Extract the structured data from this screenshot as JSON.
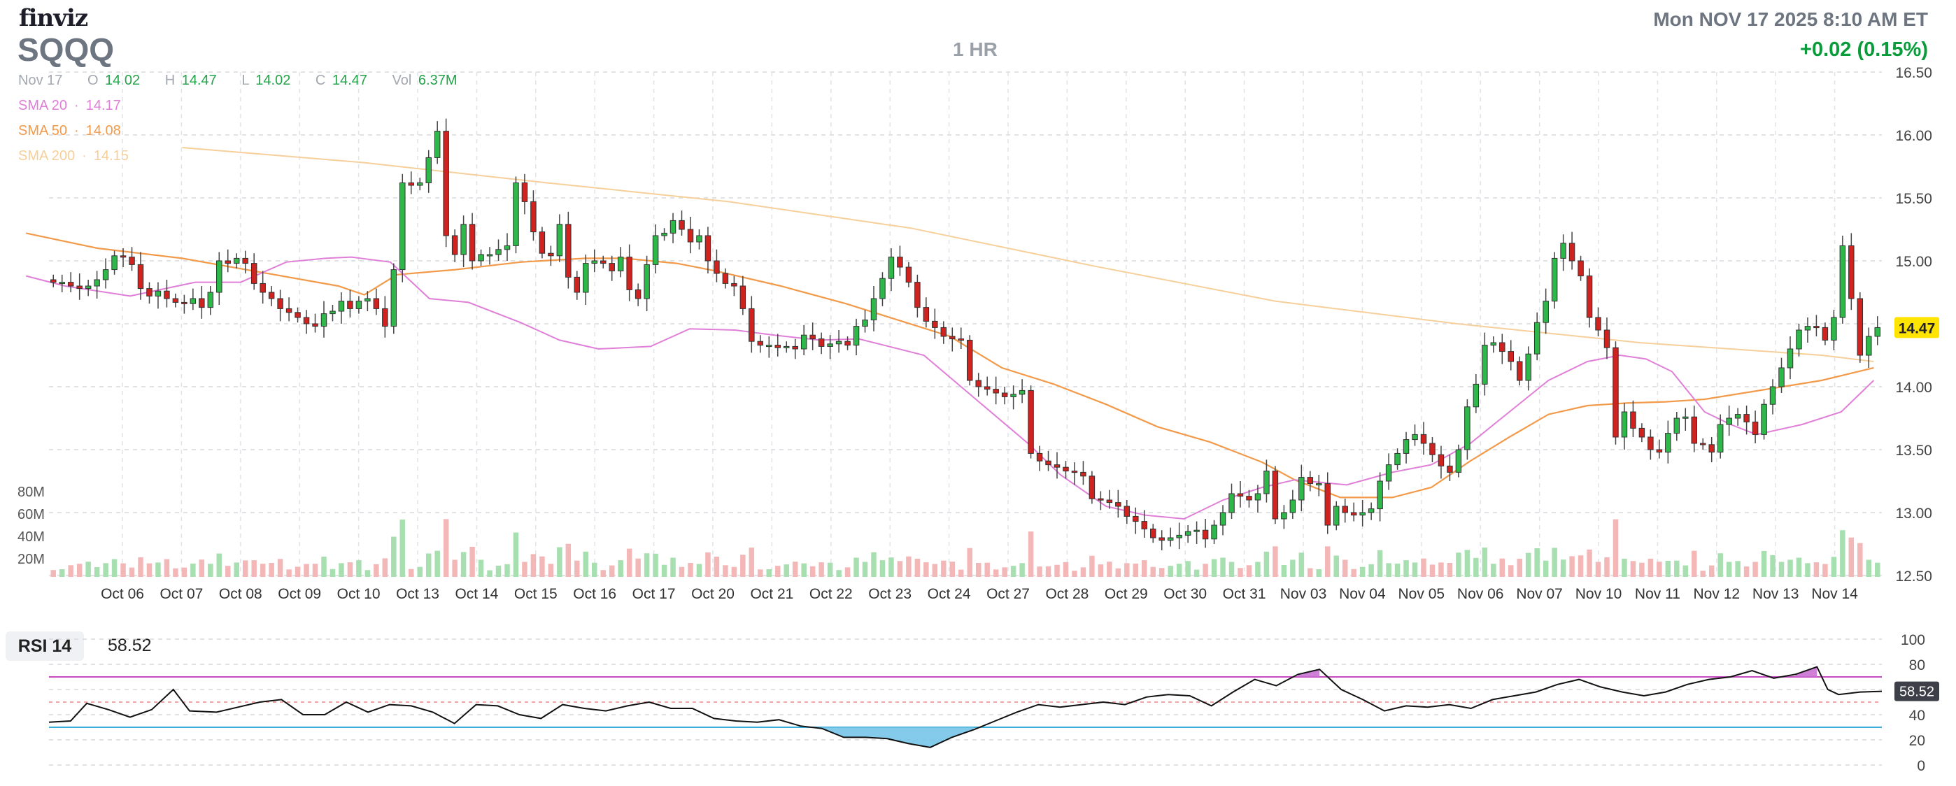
{
  "header": {
    "logo": "finviz",
    "ticker": "SQQQ",
    "interval": "1 HR",
    "datetime": "Mon NOV 17 2025 8:10 AM ET",
    "change": "+0.02 (0.15%)"
  },
  "ohlc": {
    "date": "Nov 17",
    "open_label": "O",
    "open": "14.02",
    "high_label": "H",
    "high": "14.47",
    "low_label": "L",
    "low": "14.02",
    "close_label": "C",
    "close": "14.47",
    "vol_label": "Vol",
    "vol": "6.37M"
  },
  "sma_legend": [
    {
      "label": "SMA 20",
      "value": "14.17",
      "color": "#e07fd8"
    },
    {
      "label": "SMA 50",
      "value": "14.08",
      "color": "#f29a4a"
    },
    {
      "label": "SMA 200",
      "value": "14.15",
      "color": "#f6cf9a"
    }
  ],
  "colors": {
    "up": "#2eb84a",
    "down": "#d0221f",
    "vol_up": "#a7dfb0",
    "vol_down": "#f4b7b7",
    "rsi_line": "#111111",
    "rsi_upper": "#c84ac0",
    "rsi_lower": "#3aaed8",
    "rsi_over_fill": "#c56ad0",
    "rsi_under_fill": "#6fc2e8",
    "last_bg": "#ffe400"
  },
  "rsi": {
    "label": "RSI 14",
    "value": "58.52",
    "axis_ticks": [
      "100",
      "80",
      "60",
      "40",
      "20",
      "0"
    ],
    "upper": 70,
    "lower": 30
  },
  "chart_data": {
    "type": "candlestick",
    "y_ticks": [
      "16.50",
      "16.00",
      "15.50",
      "15.00",
      "14.50",
      "14.00",
      "13.50",
      "13.00",
      "12.50"
    ],
    "ylim": [
      12.5,
      16.5
    ],
    "last_price": "14.47",
    "volume_ticks": [
      "80M",
      "60M",
      "40M",
      "20M"
    ],
    "x_labels": [
      "Oct 06",
      "Oct 07",
      "Oct 08",
      "Oct 09",
      "Oct 10",
      "Oct 13",
      "Oct 14",
      "Oct 15",
      "Oct 16",
      "Oct 17",
      "Oct 20",
      "Oct 21",
      "Oct 22",
      "Oct 23",
      "Oct 24",
      "Oct 27",
      "Oct 28",
      "Oct 29",
      "Oct 30",
      "Oct 31",
      "Nov 03",
      "Nov 04",
      "Nov 05",
      "Nov 06",
      "Nov 07",
      "Nov 10",
      "Nov 11",
      "Nov 12",
      "Nov 13",
      "Nov 14"
    ],
    "closes": [
      14.83,
      14.83,
      14.8,
      14.78,
      14.8,
      14.85,
      14.93,
      15.04,
      15.03,
      14.97,
      14.78,
      14.72,
      14.76,
      14.7,
      14.67,
      14.66,
      14.7,
      14.63,
      14.75,
      15.0,
      14.98,
      15.02,
      14.98,
      14.82,
      14.75,
      14.7,
      14.62,
      14.59,
      14.55,
      14.5,
      14.48,
      14.58,
      14.6,
      14.68,
      14.62,
      14.68,
      14.7,
      14.62,
      14.48,
      14.93,
      15.62,
      15.6,
      15.62,
      15.82,
      16.03,
      15.2,
      15.05,
      15.29,
      15.0,
      15.05,
      15.05,
      15.09,
      15.12,
      15.62,
      15.47,
      15.23,
      15.06,
      15.04,
      15.29,
      14.87,
      14.75,
      14.98,
      15.0,
      14.98,
      14.92,
      15.03,
      14.77,
      14.7,
      14.97,
      15.2,
      15.22,
      15.32,
      15.25,
      15.15,
      15.2,
      15.0,
      14.9,
      14.82,
      14.8,
      14.62,
      14.36,
      14.33,
      14.33,
      14.31,
      14.32,
      14.3,
      14.41,
      14.38,
      14.32,
      14.34,
      14.36,
      14.33,
      14.48,
      14.53,
      14.7,
      14.86,
      15.03,
      14.95,
      14.83,
      14.63,
      14.52,
      14.47,
      14.4,
      14.38,
      14.37,
      14.05,
      14.0,
      13.98,
      13.95,
      13.92,
      13.94,
      13.97,
      13.47,
      13.41,
      13.38,
      13.36,
      13.33,
      13.32,
      13.29,
      13.11,
      13.1,
      13.08,
      13.05,
      12.97,
      12.93,
      12.87,
      12.8,
      12.78,
      12.8,
      12.82,
      12.85,
      12.86,
      12.79,
      12.9,
      13.0,
      13.15,
      13.13,
      13.1,
      13.15,
      13.33,
      12.95,
      13.0,
      13.1,
      13.28,
      13.23,
      13.23,
      12.9,
      13.05,
      13.0,
      12.98,
      13.0,
      13.03,
      13.25,
      13.38,
      13.47,
      13.58,
      13.62,
      13.55,
      13.46,
      13.37,
      13.32,
      13.5,
      13.84,
      14.02,
      14.33,
      14.35,
      14.28,
      14.2,
      14.05,
      14.26,
      14.51,
      14.68,
      15.02,
      15.14,
      15.0,
      14.88,
      14.55,
      14.45,
      14.31,
      13.6,
      13.8,
      13.67,
      13.6,
      13.5,
      13.48,
      13.63,
      13.75,
      13.76,
      13.55,
      13.54,
      13.48,
      13.7,
      13.75,
      13.78,
      13.72,
      13.62,
      13.86,
      14.0,
      14.15,
      14.3,
      14.45,
      14.48,
      14.47,
      14.37,
      14.55,
      15.12,
      14.7,
      14.25,
      14.4,
      14.47
    ],
    "sma20": [
      [
        40,
        14.88
      ],
      [
        100,
        14.8
      ],
      [
        200,
        14.72
      ],
      [
        300,
        14.83
      ],
      [
        370,
        14.83
      ],
      [
        440,
        14.99
      ],
      [
        500,
        15.02
      ],
      [
        540,
        15.03
      ],
      [
        600,
        14.99
      ],
      [
        660,
        14.7
      ],
      [
        720,
        14.67
      ],
      [
        800,
        14.51
      ],
      [
        860,
        14.37
      ],
      [
        920,
        14.3
      ],
      [
        1000,
        14.32
      ],
      [
        1060,
        14.46
      ],
      [
        1130,
        14.45
      ],
      [
        1190,
        14.41
      ],
      [
        1260,
        14.37
      ],
      [
        1320,
        14.38
      ],
      [
        1420,
        14.25
      ],
      [
        1500,
        13.9
      ],
      [
        1580,
        13.55
      ],
      [
        1630,
        13.3
      ],
      [
        1700,
        13.05
      ],
      [
        1760,
        12.98
      ],
      [
        1820,
        12.95
      ],
      [
        1880,
        13.1
      ],
      [
        1940,
        13.2
      ],
      [
        1990,
        13.26
      ],
      [
        2070,
        13.22
      ],
      [
        2140,
        13.32
      ],
      [
        2200,
        13.38
      ],
      [
        2260,
        13.55
      ],
      [
        2320,
        13.8
      ],
      [
        2380,
        14.05
      ],
      [
        2440,
        14.2
      ],
      [
        2490,
        14.25
      ],
      [
        2530,
        14.22
      ],
      [
        2570,
        14.12
      ],
      [
        2620,
        13.8
      ],
      [
        2660,
        13.7
      ],
      [
        2700,
        13.62
      ],
      [
        2770,
        13.7
      ],
      [
        2830,
        13.8
      ],
      [
        2880,
        14.05
      ]
    ],
    "sma50": [
      [
        40,
        15.22
      ],
      [
        150,
        15.1
      ],
      [
        280,
        15.02
      ],
      [
        400,
        14.91
      ],
      [
        520,
        14.8
      ],
      [
        560,
        14.73
      ],
      [
        610,
        14.89
      ],
      [
        700,
        14.93
      ],
      [
        800,
        14.99
      ],
      [
        900,
        15.02
      ],
      [
        960,
        15.02
      ],
      [
        1040,
        14.98
      ],
      [
        1100,
        14.92
      ],
      [
        1200,
        14.8
      ],
      [
        1300,
        14.66
      ],
      [
        1380,
        14.53
      ],
      [
        1460,
        14.4
      ],
      [
        1540,
        14.15
      ],
      [
        1620,
        14.02
      ],
      [
        1700,
        13.86
      ],
      [
        1780,
        13.68
      ],
      [
        1860,
        13.56
      ],
      [
        1940,
        13.4
      ],
      [
        1990,
        13.26
      ],
      [
        2060,
        13.12
      ],
      [
        2140,
        13.12
      ],
      [
        2200,
        13.2
      ],
      [
        2260,
        13.41
      ],
      [
        2320,
        13.6
      ],
      [
        2380,
        13.78
      ],
      [
        2440,
        13.85
      ],
      [
        2500,
        13.87
      ],
      [
        2560,
        13.88
      ],
      [
        2620,
        13.9
      ],
      [
        2680,
        13.95
      ],
      [
        2740,
        14.0
      ],
      [
        2800,
        14.05
      ],
      [
        2880,
        14.15
      ]
    ],
    "sma200": [
      [
        280,
        15.9
      ],
      [
        560,
        15.78
      ],
      [
        840,
        15.62
      ],
      [
        1120,
        15.47
      ],
      [
        1400,
        15.26
      ],
      [
        1680,
        14.96
      ],
      [
        1960,
        14.68
      ],
      [
        2240,
        14.5
      ],
      [
        2520,
        14.35
      ],
      [
        2800,
        14.25
      ],
      [
        2880,
        14.2
      ]
    ],
    "rsi_values": [
      [
        70,
        34
      ],
      [
        110,
        35
      ],
      [
        140,
        49
      ],
      [
        180,
        44
      ],
      [
        220,
        38
      ],
      [
        260,
        44
      ],
      [
        300,
        60
      ],
      [
        330,
        43
      ],
      [
        380,
        42
      ],
      [
        420,
        46
      ],
      [
        460,
        50
      ],
      [
        500,
        52
      ],
      [
        540,
        40
      ],
      [
        580,
        40
      ],
      [
        620,
        50
      ],
      [
        660,
        42
      ],
      [
        700,
        48
      ],
      [
        740,
        47
      ],
      [
        780,
        42
      ],
      [
        820,
        33
      ],
      [
        860,
        48
      ],
      [
        900,
        47
      ],
      [
        940,
        40
      ],
      [
        980,
        37
      ],
      [
        1020,
        48
      ],
      [
        1060,
        45
      ],
      [
        1100,
        43
      ],
      [
        1140,
        47
      ],
      [
        1180,
        50
      ],
      [
        1220,
        45
      ],
      [
        1260,
        45
      ],
      [
        1300,
        37
      ],
      [
        1340,
        35
      ],
      [
        1380,
        34
      ],
      [
        1420,
        36
      ],
      [
        1460,
        31
      ],
      [
        1500,
        29
      ],
      [
        1540,
        22
      ],
      [
        1580,
        22
      ],
      [
        1620,
        21
      ],
      [
        1660,
        17
      ],
      [
        1700,
        14
      ],
      [
        1740,
        22
      ],
      [
        1780,
        28
      ],
      [
        1820,
        35
      ],
      [
        1860,
        42
      ],
      [
        1900,
        48
      ],
      [
        1940,
        46
      ],
      [
        1980,
        48
      ],
      [
        2020,
        50
      ],
      [
        2060,
        48
      ],
      [
        2100,
        54
      ],
      [
        2140,
        56
      ],
      [
        2180,
        55
      ],
      [
        2220,
        47
      ],
      [
        2260,
        58
      ],
      [
        2300,
        68
      ],
      [
        2340,
        63
      ],
      [
        2380,
        72
      ],
      [
        2420,
        76
      ],
      [
        2460,
        60
      ],
      [
        2500,
        52
      ],
      [
        2540,
        43
      ],
      [
        2580,
        47
      ],
      [
        2620,
        46
      ],
      [
        2660,
        48
      ],
      [
        2700,
        45
      ],
      [
        2740,
        52
      ],
      [
        2780,
        55
      ],
      [
        2820,
        58
      ],
      [
        2860,
        64
      ],
      [
        2900,
        68
      ],
      [
        2940,
        62
      ],
      [
        2980,
        58
      ],
      [
        3020,
        55
      ],
      [
        3060,
        58
      ],
      [
        3100,
        64
      ],
      [
        3140,
        68
      ],
      [
        3180,
        70
      ],
      [
        3220,
        75
      ],
      [
        3260,
        69
      ],
      [
        3300,
        72
      ],
      [
        3340,
        78
      ],
      [
        3360,
        60
      ],
      [
        3380,
        56
      ],
      [
        3420,
        58
      ],
      [
        3460,
        58.52
      ]
    ]
  }
}
